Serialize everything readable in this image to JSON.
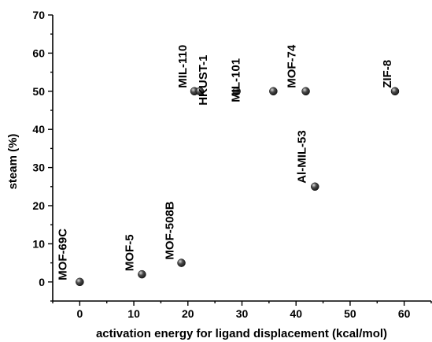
{
  "chart_data": {
    "type": "scatter",
    "xlabel": "activation energy for ligand displacement (kcal/mol)",
    "ylabel": "steam (%)",
    "xlim": [
      -5,
      65
    ],
    "ylim": [
      -5,
      70
    ],
    "x_ticks": [
      0,
      10,
      20,
      30,
      40,
      50,
      60
    ],
    "y_ticks": [
      0,
      10,
      20,
      30,
      40,
      50,
      60,
      70
    ],
    "grid": false,
    "marker_color": "#1a1a1a",
    "points": [
      {
        "label": "MOF-69C",
        "x": 0,
        "y": 0
      },
      {
        "label": "MOF-5",
        "x": 11.5,
        "y": 2
      },
      {
        "label": "MOF-508B",
        "x": 18.8,
        "y": 5
      },
      {
        "label": "MIL-110",
        "x": 21.2,
        "y": 50
      },
      {
        "label": "HKUST-1",
        "x": 22.2,
        "y": 50
      },
      {
        "label": "MIL-101",
        "x": 29,
        "y": 50
      },
      {
        "label": "",
        "x": 35.8,
        "y": 50
      },
      {
        "label": "MOF-74",
        "x": 41.8,
        "y": 50
      },
      {
        "label": "Al-MIL-53",
        "x": 43.5,
        "y": 25
      },
      {
        "label": "ZIF-8",
        "x": 58.3,
        "y": 50
      }
    ]
  }
}
